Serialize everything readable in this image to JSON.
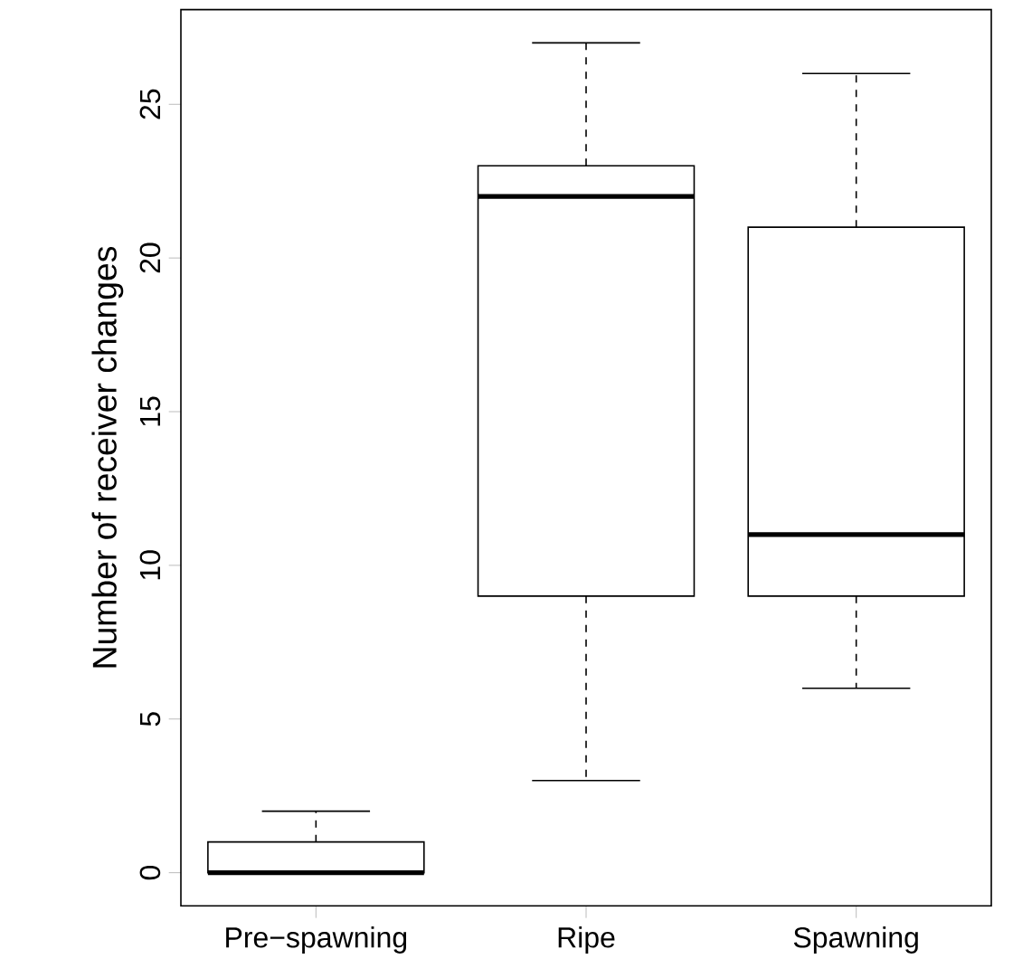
{
  "chart_data": {
    "type": "box",
    "ylabel": "Number of receiver changes",
    "categories": [
      "Pre−spawning",
      "Ripe",
      "Spawning"
    ],
    "boxes": [
      {
        "low": 0,
        "q1": 0,
        "median": 0,
        "q3": 1,
        "high": 2
      },
      {
        "low": 3,
        "q1": 9,
        "median": 22,
        "q3": 23,
        "high": 27
      },
      {
        "low": 6,
        "q1": 9,
        "median": 11,
        "q3": 21,
        "high": 26
      }
    ],
    "color": "#ffffff",
    "ylim": [
      -1.08,
      28.08
    ],
    "yticks": [
      0,
      5,
      10,
      15,
      20,
      25
    ],
    "grid": false
  }
}
